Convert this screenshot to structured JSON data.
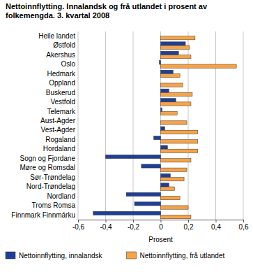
{
  "chart_data": {
    "type": "bar",
    "orientation": "horizontal",
    "title": "Nettoinnflytting. Innalandsk og frå utlandet i prosent av folkemengda. 3. kvartal 2008",
    "x_label": "Prosent",
    "categories": [
      "Heile landet",
      "Østfold",
      "Akershus",
      "Oslo",
      "Hedmark",
      "Oppland",
      "Buskerud",
      "Vestfold",
      "Telemark",
      "Aust-Agder",
      "Vest-Agder",
      "Rogaland",
      "Hordaland",
      "Sogn og Fjordane",
      "Møre og Romsdal",
      "Sør-Trøndelag",
      "Nord-Trøndelag",
      "Nordland",
      "Troms Romsa",
      "Finnmark Finnmárku"
    ],
    "series": [
      {
        "name": "Nettoinnflytting, innalandsk",
        "color": "#1f3f96",
        "values": [
          0,
          0.18,
          0.13,
          -0.01,
          0.09,
          0.0,
          0.06,
          0.11,
          0.01,
          0.0,
          0.03,
          -0.05,
          0.05,
          -0.4,
          -0.14,
          0.07,
          0.06,
          -0.25,
          -0.19,
          -0.49
        ]
      },
      {
        "name": "Nettoinnflytting, frå utlandet",
        "color": "#f7a347",
        "values": [
          0.25,
          0.21,
          0.22,
          0.55,
          0.14,
          0.16,
          0.23,
          0.22,
          0.12,
          0.19,
          0.27,
          0.27,
          0.27,
          0.22,
          0.19,
          0.17,
          0.1,
          0.14,
          0.2,
          0.22
        ]
      }
    ],
    "xlim": [
      -0.6,
      0.6
    ],
    "xticks": [
      {
        "value": -0.6,
        "label": "-0,6"
      },
      {
        "value": -0.4,
        "label": "-0,4"
      },
      {
        "value": -0.2,
        "label": "-0,2"
      },
      0,
      {
        "value": 0.2,
        "label": "0,2"
      },
      {
        "value": 0.4,
        "label": "0,4"
      },
      {
        "value": 0.6,
        "label": "0,6"
      }
    ],
    "grid": true,
    "legend": "bottom"
  }
}
